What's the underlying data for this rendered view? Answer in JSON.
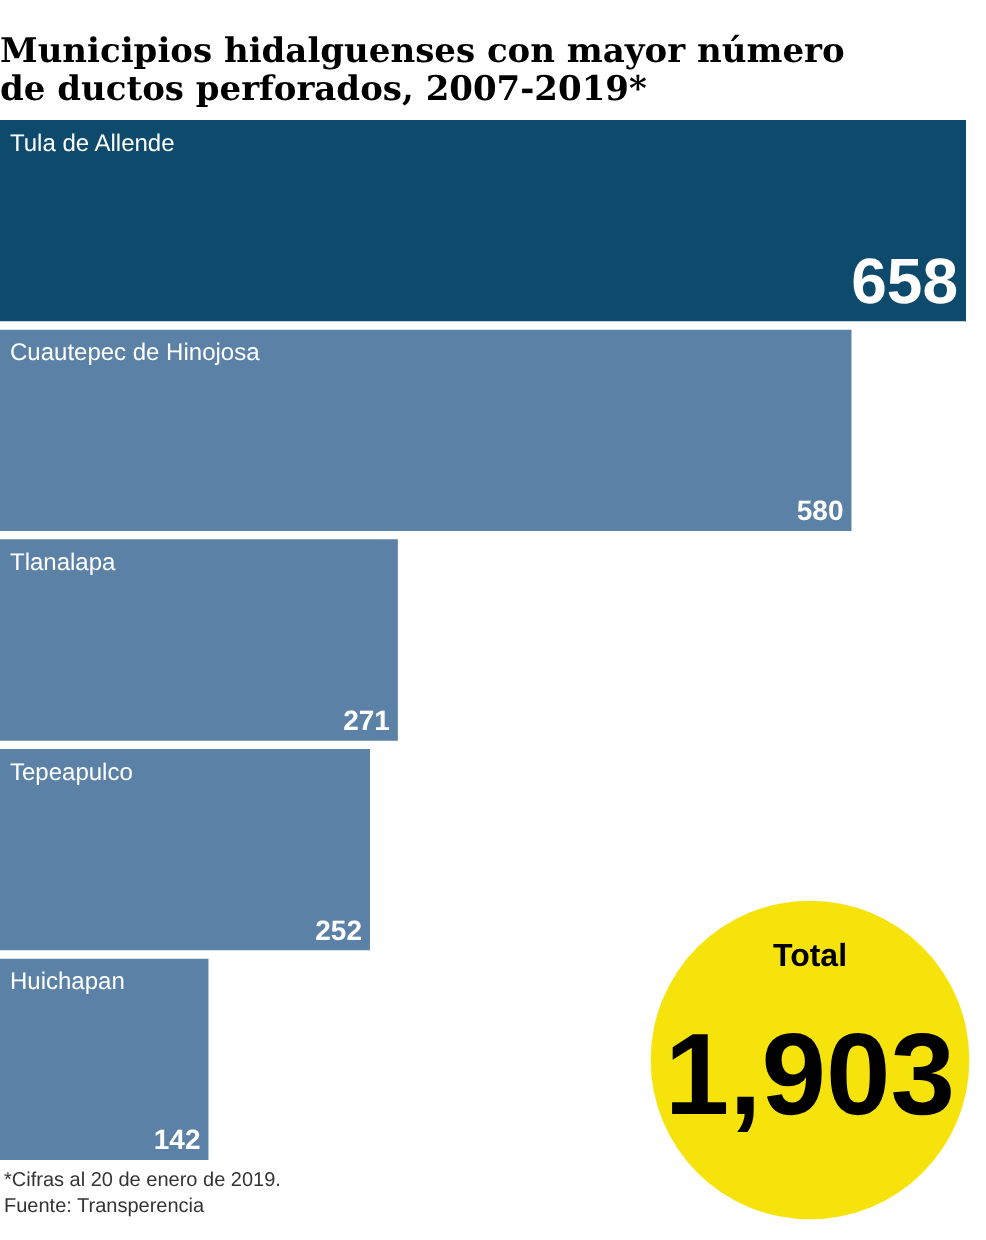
{
  "chart_data": {
    "type": "bar",
    "orientation": "horizontal",
    "title": [
      "Municipios hidalguenses con mayor número",
      "de ductos perforados, 2007-2019*"
    ],
    "categories": [
      "Tula de Allende",
      "Cuautepec de Hinojosa",
      "Tlanalapa",
      "Tepeapulco",
      "Huichapan"
    ],
    "values": [
      658,
      580,
      271,
      252,
      142
    ],
    "colors": [
      "#0d4a6b",
      "#5b82a6",
      "#5b82a6",
      "#5b82a6",
      "#5b82a6"
    ],
    "data_labels": true,
    "annotations": [
      "Total",
      "1,903",
      "*Cifras al 20 de enero de 2019.",
      "Fuente: Transperencia"
    ]
  }
}
